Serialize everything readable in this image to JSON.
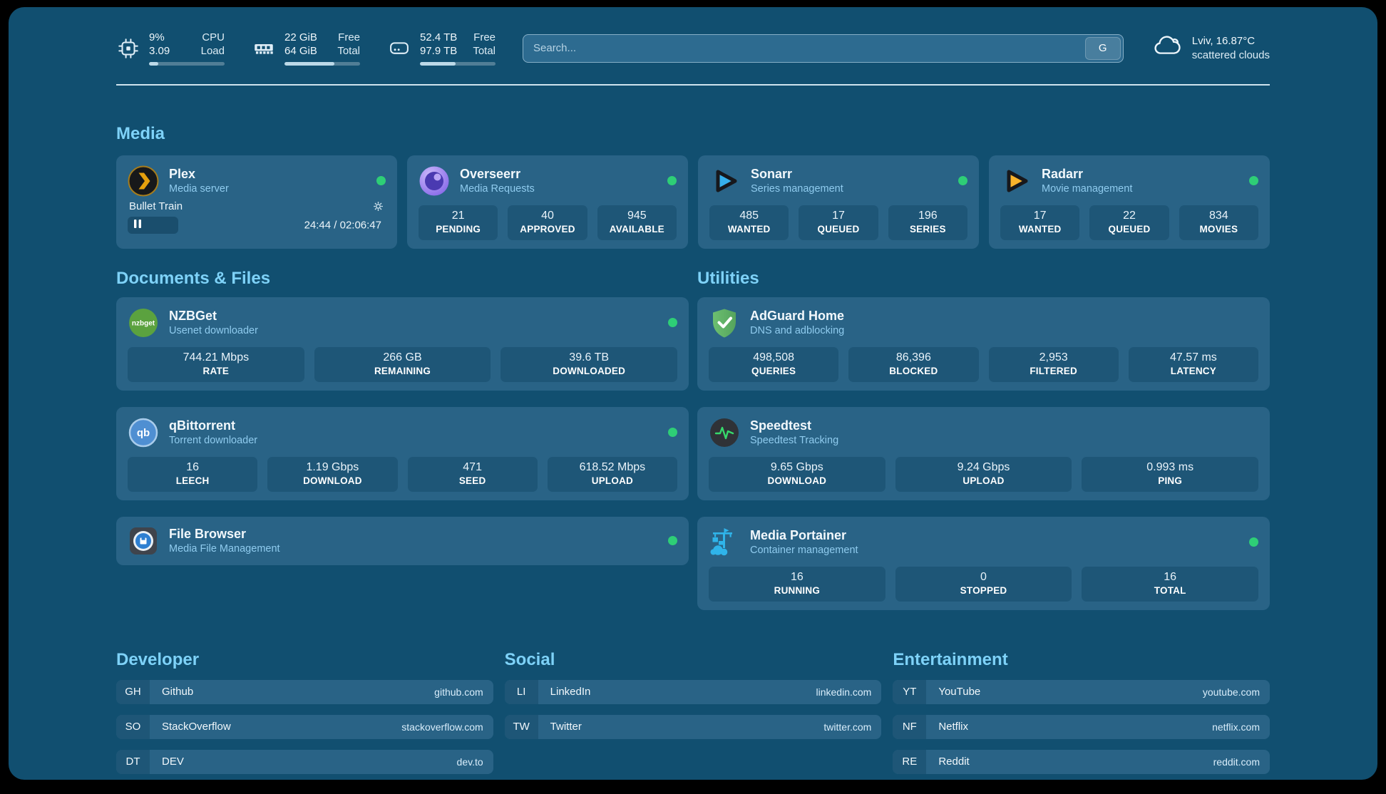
{
  "colors": {
    "status_online": "#2ece76",
    "accent_heading": "#7ed2f8",
    "card_bg": "#296386",
    "page_bg": "#114f70"
  },
  "header": {
    "system": [
      {
        "name": "cpu",
        "top_value": "9%",
        "bottom_value": "3.09",
        "top_label": "CPU",
        "bottom_label": "Load",
        "progress_pct": 12
      },
      {
        "name": "ram",
        "top_value": "22 GiB",
        "bottom_value": "64 GiB",
        "top_label": "Free",
        "bottom_label": "Total",
        "progress_pct": 66
      },
      {
        "name": "disk",
        "top_value": "52.4 TB",
        "bottom_value": "97.9 TB",
        "top_label": "Free",
        "bottom_label": "Total",
        "progress_pct": 47
      }
    ],
    "search": {
      "placeholder": "Search...",
      "engine_button": "G"
    },
    "weather": {
      "location_temperature": "Lviv, 16.87°C",
      "condition": "scattered clouds"
    }
  },
  "media": {
    "heading": "Media",
    "plex": {
      "title": "Plex",
      "subtitle": "Media server",
      "now_playing": "Bullet Train",
      "elapsed_total": "24:44 / 02:06:47",
      "progress_pct": 19.5
    },
    "overseerr": {
      "title": "Overseerr",
      "subtitle": "Media Requests",
      "stats": [
        {
          "value": "21",
          "label": "PENDING"
        },
        {
          "value": "40",
          "label": "APPROVED"
        },
        {
          "value": "945",
          "label": "AVAILABLE"
        }
      ]
    },
    "sonarr": {
      "title": "Sonarr",
      "subtitle": "Series management",
      "stats": [
        {
          "value": "485",
          "label": "WANTED"
        },
        {
          "value": "17",
          "label": "QUEUED"
        },
        {
          "value": "196",
          "label": "SERIES"
        }
      ]
    },
    "radarr": {
      "title": "Radarr",
      "subtitle": "Movie management",
      "stats": [
        {
          "value": "17",
          "label": "WANTED"
        },
        {
          "value": "22",
          "label": "QUEUED"
        },
        {
          "value": "834",
          "label": "MOVIES"
        }
      ]
    }
  },
  "documents": {
    "heading": "Documents & Files",
    "nzbget": {
      "title": "NZBGet",
      "subtitle": "Usenet downloader",
      "stats": [
        {
          "value": "744.21 Mbps",
          "label": "RATE"
        },
        {
          "value": "266 GB",
          "label": "REMAINING"
        },
        {
          "value": "39.6 TB",
          "label": "DOWNLOADED"
        }
      ]
    },
    "qbittorrent": {
      "title": "qBittorrent",
      "subtitle": "Torrent downloader",
      "stats": [
        {
          "value": "16",
          "label": "LEECH"
        },
        {
          "value": "1.19 Gbps",
          "label": "DOWNLOAD"
        },
        {
          "value": "471",
          "label": "SEED"
        },
        {
          "value": "618.52 Mbps",
          "label": "UPLOAD"
        }
      ]
    },
    "filebrowser": {
      "title": "File Browser",
      "subtitle": "Media File Management"
    }
  },
  "utilities": {
    "heading": "Utilities",
    "adguard": {
      "title": "AdGuard Home",
      "subtitle": "DNS and adblocking",
      "stats": [
        {
          "value": "498,508",
          "label": "QUERIES"
        },
        {
          "value": "86,396",
          "label": "BLOCKED"
        },
        {
          "value": "2,953",
          "label": "FILTERED"
        },
        {
          "value": "47.57 ms",
          "label": "LATENCY"
        }
      ]
    },
    "speedtest": {
      "title": "Speedtest",
      "subtitle": "Speedtest Tracking",
      "stats": [
        {
          "value": "9.65 Gbps",
          "label": "DOWNLOAD"
        },
        {
          "value": "9.24 Gbps",
          "label": "UPLOAD"
        },
        {
          "value": "0.993 ms",
          "label": "PING"
        }
      ]
    },
    "portainer": {
      "title": "Media Portainer",
      "subtitle": "Container management",
      "stats": [
        {
          "value": "16",
          "label": "RUNNING"
        },
        {
          "value": "0",
          "label": "STOPPED"
        },
        {
          "value": "16",
          "label": "TOTAL"
        }
      ]
    }
  },
  "bookmarks": [
    {
      "heading": "Developer",
      "links": [
        {
          "abbr": "GH",
          "name": "Github",
          "url": "github.com"
        },
        {
          "abbr": "SO",
          "name": "StackOverflow",
          "url": "stackoverflow.com"
        },
        {
          "abbr": "DT",
          "name": "DEV",
          "url": "dev.to"
        }
      ]
    },
    {
      "heading": "Social",
      "links": [
        {
          "abbr": "LI",
          "name": "LinkedIn",
          "url": "linkedin.com"
        },
        {
          "abbr": "TW",
          "name": "Twitter",
          "url": "twitter.com"
        }
      ]
    },
    {
      "heading": "Entertainment",
      "links": [
        {
          "abbr": "YT",
          "name": "YouTube",
          "url": "youtube.com"
        },
        {
          "abbr": "NF",
          "name": "Netflix",
          "url": "netflix.com"
        },
        {
          "abbr": "RE",
          "name": "Reddit",
          "url": "reddit.com"
        }
      ]
    }
  ]
}
